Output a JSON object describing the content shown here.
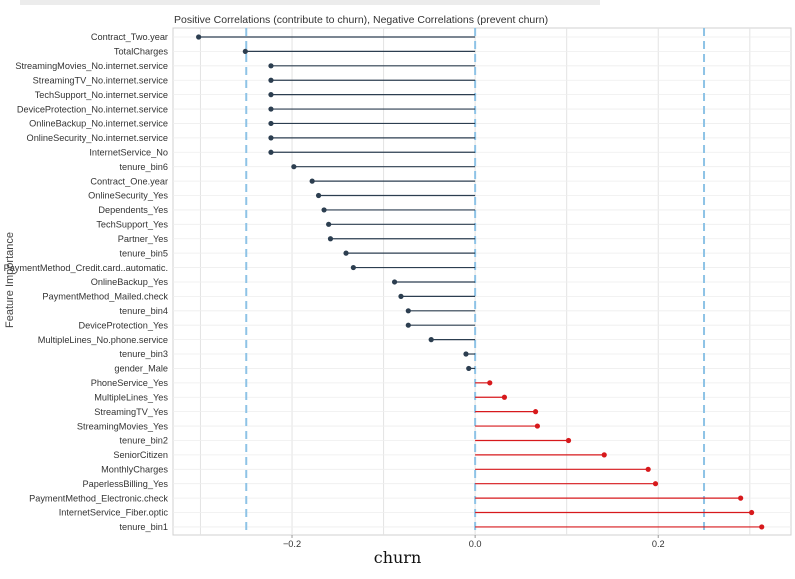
{
  "chart_data": {
    "type": "lollipop",
    "title": "Positive Correlations (contribute to churn), Negative Correlations (prevent churn)",
    "xlabel": "churn",
    "ylabel": "Feature Importance",
    "xlim": [
      -0.33,
      0.345
    ],
    "x_ticks": [
      -0.2,
      0.0,
      0.2
    ],
    "x_tick_labels": [
      "−0.2",
      "0.0",
      "0.2"
    ],
    "reference_lines": [
      -0.25,
      0.0,
      0.25
    ],
    "grid": true,
    "colors": {
      "negative": "#2c3e50",
      "positive": "#d7191c",
      "reference": "#8ec3e6",
      "grid": "#e3e3e3"
    },
    "categories": [
      "Contract_Two.year",
      "TotalCharges",
      "StreamingMovies_No.internet.service",
      "StreamingTV_No.internet.service",
      "TechSupport_No.internet.service",
      "DeviceProtection_No.internet.service",
      "OnlineBackup_No.internet.service",
      "OnlineSecurity_No.internet.service",
      "InternetService_No",
      "tenure_bin6",
      "Contract_One.year",
      "OnlineSecurity_Yes",
      "Dependents_Yes",
      "TechSupport_Yes",
      "Partner_Yes",
      "tenure_bin5",
      "PaymentMethod_Credit.card..automatic.",
      "OnlineBackup_Yes",
      "PaymentMethod_Mailed.check",
      "tenure_bin4",
      "DeviceProtection_Yes",
      "MultipleLines_No.phone.service",
      "tenure_bin3",
      "gender_Male",
      "PhoneService_Yes",
      "MultipleLines_Yes",
      "StreamingTV_Yes",
      "StreamingMovies_Yes",
      "tenure_bin2",
      "SeniorCitizen",
      "MonthlyCharges",
      "PaperlessBilling_Yes",
      "PaymentMethod_Electronic.check",
      "InternetService_Fiber.optic",
      "tenure_bin1"
    ],
    "values": [
      -0.302,
      -0.251,
      -0.223,
      -0.223,
      -0.223,
      -0.223,
      -0.223,
      -0.223,
      -0.223,
      -0.198,
      -0.178,
      -0.171,
      -0.165,
      -0.16,
      -0.158,
      -0.141,
      -0.133,
      -0.088,
      -0.081,
      -0.073,
      -0.073,
      -0.048,
      -0.01,
      -0.007,
      0.016,
      0.032,
      0.066,
      0.068,
      0.102,
      0.141,
      0.189,
      0.197,
      0.29,
      0.302,
      0.313
    ]
  }
}
